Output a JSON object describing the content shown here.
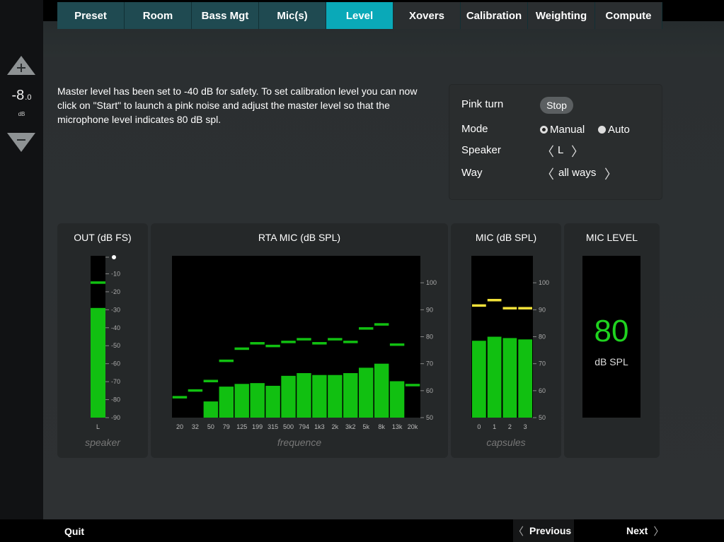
{
  "master": {
    "value_int": "-8",
    "value_dec": ".0",
    "unit": "dB",
    "up_icon": "plus-triangle-icon",
    "down_icon": "minus-triangle-icon"
  },
  "tabs": [
    {
      "label": "Preset",
      "state": "teal"
    },
    {
      "label": "Room",
      "state": "teal"
    },
    {
      "label": "Bass Mgt",
      "state": "teal"
    },
    {
      "label": "Mic(s)",
      "state": "teal"
    },
    {
      "label": "Level",
      "state": "active"
    },
    {
      "label": "Xovers",
      "state": "dark"
    },
    {
      "label": "Calibration",
      "state": "dark"
    },
    {
      "label": "Weighting",
      "state": "dark"
    },
    {
      "label": "Compute",
      "state": "dark"
    }
  ],
  "instructions": "Master level has been set to -40 dB for safety. To set calibration level you can now click on \"Start\" to launch a pink noise and adjust the master level so that the microphone level indicates 80 dB spl.",
  "calibration": {
    "pink_turn_label": "Pink turn",
    "stop_label": "Stop",
    "mode_label": "Mode",
    "mode_options": [
      "Manual",
      "Auto"
    ],
    "mode_selected": "Manual",
    "speaker_label": "Speaker",
    "speaker_value": "L",
    "way_label": "Way",
    "way_value": "all ways",
    "prev_glyph": "〈",
    "next_glyph": "〉"
  },
  "panels": {
    "out": {
      "title": "OUT (dB FS)",
      "caption": "speaker"
    },
    "rta": {
      "title": "RTA MIC (dB SPL)",
      "caption": "frequence"
    },
    "mic": {
      "title": "MIC (dB SPL)",
      "caption": "capsules"
    },
    "level": {
      "title": "MIC LEVEL",
      "value": "80",
      "unit": "dB SPL"
    }
  },
  "chart_data": [
    {
      "type": "bar",
      "title": "OUT (dB FS)",
      "categories": [
        "L"
      ],
      "values": [
        -29
      ],
      "peak": [
        -15
      ],
      "ylim": [
        -90,
        0
      ],
      "yticks": [
        "-10",
        "-20",
        "-30",
        "-40",
        "-50",
        "-60",
        "-70",
        "-80",
        "-90"
      ],
      "bar_color": "#11c011",
      "peak_color": "#11c011"
    },
    {
      "type": "bar",
      "title": "RTA MIC (dB SPL)",
      "categories": [
        "20",
        "32",
        "50",
        "79",
        "125",
        "199",
        "315",
        "500",
        "794",
        "1k3",
        "2k",
        "3k2",
        "5k",
        "8k",
        "13k",
        "20k"
      ],
      "values": [
        null,
        null,
        56,
        61.5,
        62.5,
        62.8,
        61.8,
        65.5,
        66.5,
        65.8,
        65.8,
        66.5,
        68.5,
        70,
        63.5,
        null
      ],
      "peak": [
        57.5,
        60,
        63.5,
        71,
        75.5,
        77.5,
        76.5,
        78,
        79,
        77.5,
        79,
        78,
        83,
        84.5,
        77,
        62
      ],
      "ylim": [
        50,
        110
      ],
      "yticks": [
        "100",
        "90",
        "80",
        "70",
        "60",
        "50"
      ],
      "bar_color": "#11c011",
      "peak_color": "#11c011"
    },
    {
      "type": "bar",
      "title": "MIC (dB SPL)",
      "categories": [
        "0",
        "1",
        "2",
        "3"
      ],
      "values": [
        78.5,
        80,
        79.5,
        79
      ],
      "peak": [
        91.5,
        93.5,
        90.5,
        90.5
      ],
      "ylim": [
        50,
        110
      ],
      "yticks": [
        "100",
        "90",
        "80",
        "70",
        "60",
        "50"
      ],
      "bar_color": "#11c011",
      "peak_color": "#f2e23a"
    }
  ],
  "footer": {
    "quit_label": "Quit",
    "prev_label": "Previous",
    "next_label": "Next",
    "prev_glyph": "〈",
    "next_glyph": "〉"
  }
}
